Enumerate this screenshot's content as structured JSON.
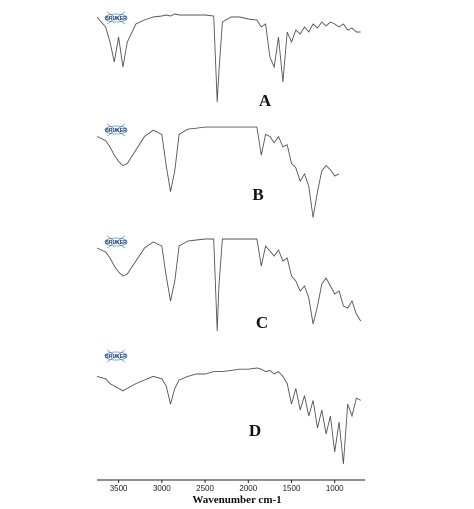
{
  "chart_data": {
    "type": "line",
    "x_label": "Wavenumber cm-1",
    "logo_text": "BRUKER",
    "xlim": [
      3750,
      650
    ],
    "ylim": [
      0,
      100
    ],
    "xticks": [
      3500,
      3000,
      2500,
      2000,
      1500,
      1000
    ],
    "x": [
      3750,
      3650,
      3600,
      3550,
      3500,
      3450,
      3400,
      3300,
      3200,
      3100,
      3000,
      2950,
      2900,
      2850,
      2800,
      2700,
      2600,
      2500,
      2400,
      2360,
      2340,
      2300,
      2200,
      2100,
      2000,
      1900,
      1850,
      1800,
      1750,
      1700,
      1650,
      1600,
      1550,
      1500,
      1450,
      1400,
      1350,
      1300,
      1250,
      1200,
      1150,
      1100,
      1050,
      1000,
      950,
      900,
      850,
      800,
      750,
      700
    ],
    "series": [
      {
        "name": "A",
        "color": "#555555",
        "values": [
          95,
          85,
          70,
          50,
          75,
          45,
          70,
          88,
          92,
          95,
          96,
          97,
          96,
          98,
          97,
          97,
          97,
          97,
          96,
          10,
          40,
          90,
          95,
          95,
          93,
          92,
          85,
          88,
          55,
          45,
          75,
          30,
          80,
          70,
          82,
          78,
          85,
          80,
          88,
          84,
          90,
          86,
          90,
          88,
          85,
          88,
          82,
          84,
          80,
          80
        ]
      },
      {
        "name": "B",
        "color": "#555555",
        "values": [
          88,
          84,
          78,
          70,
          64,
          60,
          62,
          75,
          88,
          94,
          90,
          60,
          35,
          55,
          90,
          95,
          96,
          97,
          97,
          97,
          97,
          97,
          97,
          97,
          97,
          97,
          70,
          90,
          88,
          82,
          88,
          78,
          80,
          62,
          58,
          45,
          52,
          40,
          10,
          35,
          55,
          60,
          56,
          50,
          52,
          null,
          null,
          null,
          null,
          null
        ]
      },
      {
        "name": "C",
        "color": "#555555",
        "values": [
          88,
          84,
          78,
          70,
          64,
          60,
          62,
          75,
          88,
          94,
          90,
          60,
          35,
          55,
          90,
          95,
          96,
          97,
          97,
          5,
          50,
          97,
          97,
          97,
          97,
          97,
          70,
          90,
          85,
          80,
          86,
          75,
          78,
          60,
          55,
          45,
          50,
          38,
          12,
          30,
          52,
          58,
          50,
          42,
          45,
          30,
          28,
          35,
          22,
          15
        ]
      },
      {
        "name": "D",
        "color": "#555555",
        "values": [
          78,
          76,
          72,
          70,
          68,
          66,
          68,
          72,
          75,
          78,
          76,
          70,
          55,
          68,
          75,
          78,
          80,
          80,
          82,
          82,
          82,
          82,
          83,
          84,
          84,
          85,
          84,
          82,
          83,
          80,
          82,
          78,
          72,
          55,
          68,
          50,
          62,
          45,
          58,
          35,
          50,
          30,
          45,
          15,
          40,
          5,
          55,
          45,
          60,
          58
        ]
      }
    ]
  }
}
